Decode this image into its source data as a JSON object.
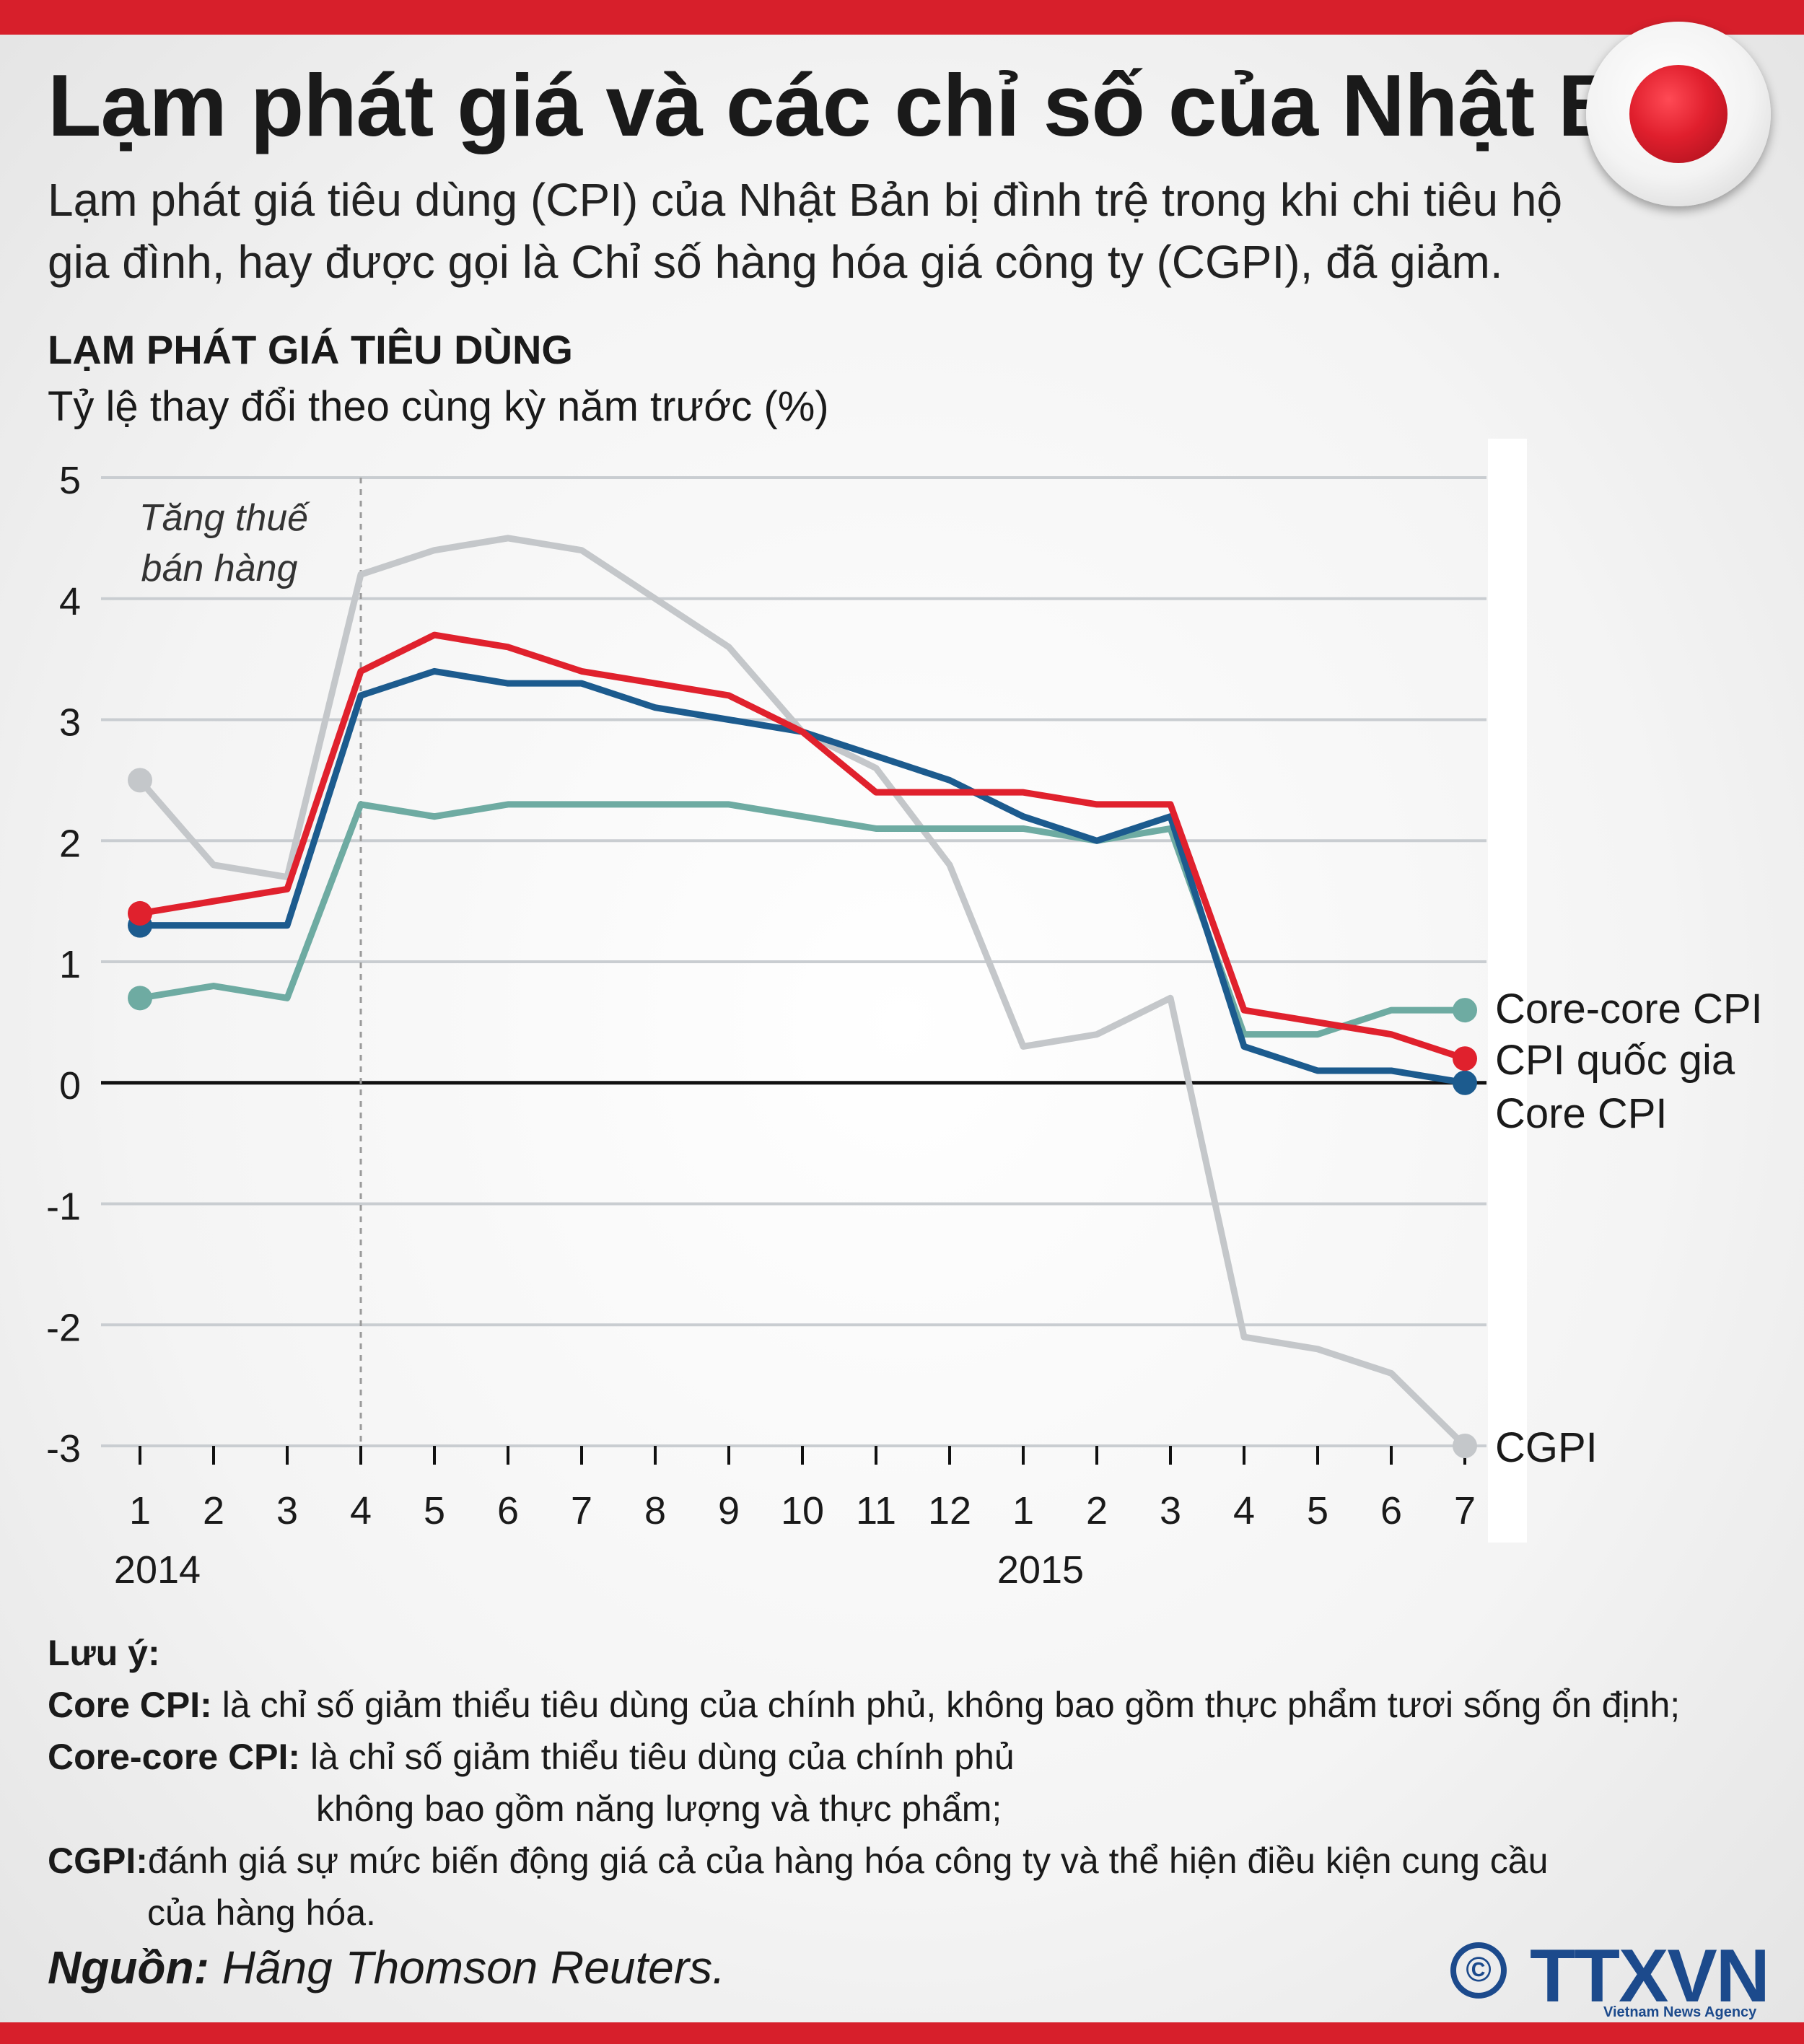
{
  "header": {
    "title": "Lạm phát giá và các chỉ số của Nhật Bản",
    "subtitle": "Lạm phát giá tiêu dùng (CPI) của Nhật Bản bị đình trệ trong khi chi tiêu hộ gia đình, hay được gọi là Chỉ số hàng hóa giá công ty (CGPI), đã giảm."
  },
  "colors": {
    "accent": "#d71f2b",
    "cpi_national": "#e0212d",
    "core_cpi": "#1c5b8e",
    "core_core_cpi": "#6eaba2",
    "cgpi": "#c4c7ca"
  },
  "chart_data": {
    "type": "line",
    "title": "LẠM PHÁT GIÁ TIÊU DÙNG",
    "ylabel": "Tỷ lệ thay đổi theo cùng kỳ năm trước (%)",
    "xlabel": "",
    "ylim": [
      -3,
      5
    ],
    "yticks": [
      5,
      4,
      3,
      2,
      1,
      0,
      -1,
      -2,
      -3
    ],
    "categories": [
      "1",
      "2",
      "3",
      "4",
      "5",
      "6",
      "7",
      "8",
      "9",
      "10",
      "11",
      "12",
      "1",
      "2",
      "3",
      "4",
      "5",
      "6",
      "7"
    ],
    "year_labels": [
      {
        "label": "2014",
        "index": 0
      },
      {
        "label": "2015",
        "index": 12
      }
    ],
    "annotation": {
      "text_line1": "Tăng thuế",
      "text_line2": "bán hàng",
      "index": 3
    },
    "series": [
      {
        "name": "CGPI",
        "values": [
          2.5,
          1.8,
          1.7,
          4.2,
          4.4,
          4.5,
          4.4,
          4.0,
          3.6,
          2.9,
          2.6,
          1.8,
          0.3,
          0.4,
          0.7,
          -2.1,
          -2.2,
          -2.4,
          -3.0
        ]
      },
      {
        "name": "Core-core CPI",
        "values": [
          0.7,
          0.8,
          0.7,
          2.3,
          2.2,
          2.3,
          2.3,
          2.3,
          2.3,
          2.2,
          2.1,
          2.1,
          2.1,
          2.0,
          2.1,
          0.4,
          0.4,
          0.6,
          0.6
        ]
      },
      {
        "name": "Core CPI",
        "values": [
          1.3,
          1.3,
          1.3,
          3.2,
          3.4,
          3.3,
          3.3,
          3.1,
          3.0,
          2.9,
          2.7,
          2.5,
          2.2,
          2.0,
          2.2,
          0.3,
          0.1,
          0.1,
          0.0
        ]
      },
      {
        "name": "CPI quốc gia",
        "values": [
          1.4,
          1.5,
          1.6,
          3.4,
          3.7,
          3.6,
          3.4,
          3.3,
          3.2,
          2.9,
          2.4,
          2.4,
          2.4,
          2.3,
          2.3,
          0.6,
          0.5,
          0.4,
          0.2
        ]
      }
    ]
  },
  "notes": {
    "heading": "Lưu ý:",
    "core_cpi_label": "Core CPI:",
    "core_cpi_text": "là chỉ số giảm thiểu tiêu dùng của chính phủ, không bao gồm thực phẩm tươi sống ổn định;",
    "core_core_label": "Core-core CPI:",
    "core_core_text1": "là chỉ số giảm thiểu tiêu dùng của chính phủ",
    "core_core_text2": "không bao gồm năng lượng và thực phẩm;",
    "cgpi_label": "CGPI:",
    "cgpi_text1": "đánh giá sự mức biến động giá cả của hàng hóa công ty và thể hiện điều kiện cung cầu",
    "cgpi_text2": "của hàng hóa."
  },
  "source": {
    "label": "Nguồn:",
    "text": "Hãng Thomson Reuters."
  },
  "logo": {
    "copyright": "©",
    "name": "TTXVN",
    "subtitle": "Vietnam News Agency"
  }
}
